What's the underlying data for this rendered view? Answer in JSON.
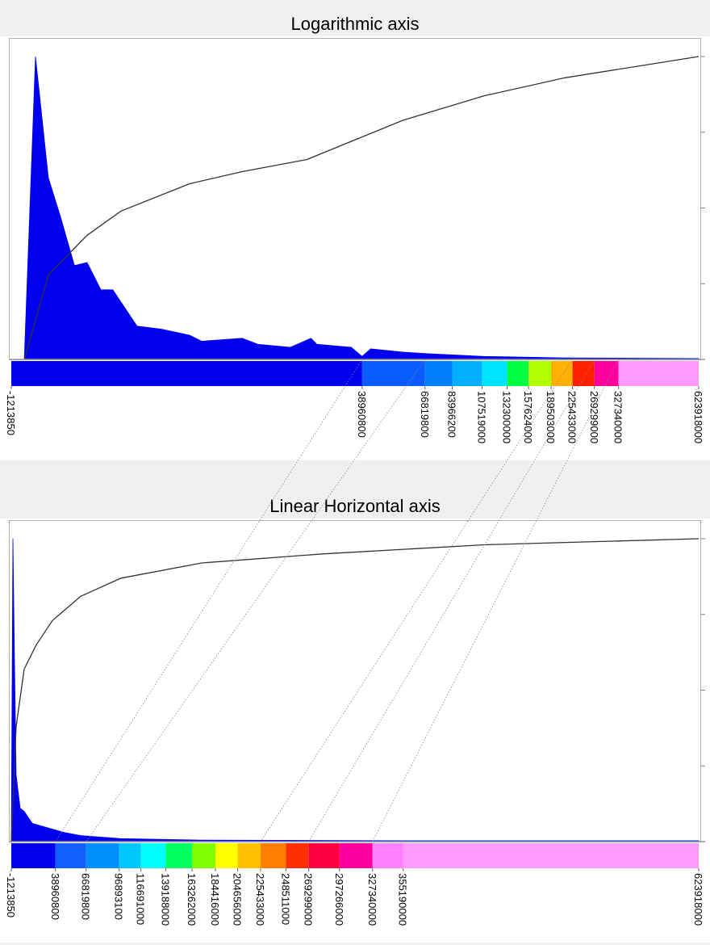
{
  "chart_data": [
    {
      "type": "histogram",
      "title": "Logarithmic axis",
      "xscale": "log",
      "xlim": [
        -1213850,
        623918000
      ],
      "xticks": [
        -1213850,
        38960800,
        66819800,
        83966200,
        107519000,
        132300000,
        157624000,
        189503000,
        225433000,
        269299000,
        327340000,
        623918000
      ],
      "colorbar_colors": [
        "#0000ee",
        "#0a5cff",
        "#0080ff",
        "#00b0ff",
        "#00e5ff",
        "#00ff40",
        "#b0ff00",
        "#ffb000",
        "#ff2000",
        "#ff00a0",
        "#ff99ff"
      ],
      "ylim": [
        0,
        100
      ],
      "y2lim": [
        0,
        100
      ],
      "y2ticks": [
        0,
        25,
        50,
        75,
        100
      ],
      "series": [
        {
          "type": "area",
          "color": "#0000ee",
          "x": [
            -930000,
            -660000,
            -320000,
            40000,
            490000,
            950000,
            1500000,
            2030000,
            3280000,
            4800000,
            6980000,
            8070000,
            12600000,
            14800000,
            20300000,
            24600000,
            26000000,
            35400000,
            38900000,
            42000000,
            55600000,
            68300000,
            109000000,
            212000000,
            623918000
          ],
          "values": [
            0,
            100,
            60,
            47,
            31,
            32,
            23,
            23,
            11,
            10,
            8,
            6,
            7,
            5,
            4,
            7,
            5,
            4,
            1,
            3.5,
            2.4,
            1.9,
            1,
            0.5,
            0.3
          ]
        },
        {
          "type": "line",
          "color": "#333333",
          "axis": "y2",
          "x": [
            -930000,
            -316000,
            950000,
            2430000,
            6980000,
            12600000,
            23700000,
            35400000,
            55600000,
            109000000,
            212000000,
            623918000
          ],
          "values": [
            0,
            28,
            41,
            49,
            58,
            62,
            66,
            72,
            79,
            87,
            93,
            100
          ]
        }
      ]
    },
    {
      "type": "histogram",
      "title": "Linear Horizontal axis",
      "xscale": "linear",
      "xlim": [
        -1213850,
        623918000
      ],
      "xticks": [
        -1213850,
        38960800,
        66819800,
        96893100,
        116691000,
        139188000,
        163262000,
        184416000,
        204656000,
        225433000,
        248511000,
        269299000,
        297266000,
        327340000,
        355190000,
        623918000
      ],
      "colorbar_colors": [
        "#0000ee",
        "#1060ff",
        "#0090ff",
        "#00c8ff",
        "#00ffff",
        "#00ff60",
        "#80ff00",
        "#ffff00",
        "#ffc000",
        "#ff8000",
        "#ff3000",
        "#ff0040",
        "#ff00a0",
        "#ff80ff",
        "#ff99ff"
      ],
      "ylim": [
        0,
        100
      ],
      "y2lim": [
        0,
        100
      ],
      "y2ticks": [
        0,
        25,
        50,
        75,
        100
      ],
      "series": [
        {
          "type": "area",
          "color": "#0000ee",
          "x": [
            -1213850,
            253000,
            1720000,
            3190000,
            6860000,
            10500000,
            17900000,
            32500000,
            47200000,
            61900000,
            98600000,
            172000000,
            355000000,
            623918000
          ],
          "values": [
            0,
            100,
            59,
            22,
            11,
            10,
            6,
            4.5,
            3,
            2,
            1,
            0.5,
            0.3,
            0.3
          ]
        },
        {
          "type": "line",
          "color": "#333333",
          "axis": "y2",
          "x": [
            -1213850,
            3190000,
            10500000,
            21500000,
            36200000,
            61900000,
            98600000,
            172000000,
            282000000,
            429000000,
            623918000
          ],
          "values": [
            0,
            38,
            57,
            65,
            73,
            81,
            87,
            92,
            95,
            98,
            100
          ]
        }
      ]
    }
  ]
}
